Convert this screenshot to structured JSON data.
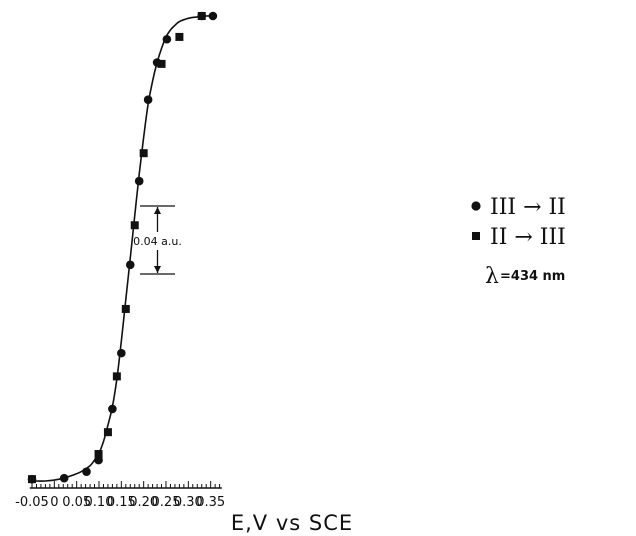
{
  "chart_data": {
    "type": "scatter",
    "title": "",
    "xlabel": "E,V vs SCE",
    "ylabel": "",
    "xlim": [
      -0.055,
      0.375
    ],
    "ylim": [
      0,
      1
    ],
    "x_ticks": [
      -0.05,
      0,
      0.05,
      0.1,
      0.15,
      0.2,
      0.25,
      0.3,
      0.35
    ],
    "x_tick_labels": [
      "-0.05",
      "0",
      "0.05",
      "0.10",
      "0.15",
      "0.20",
      "0.25",
      "0.30",
      "0.35"
    ],
    "scale_bar": {
      "label": "0.04 a.u.",
      "value": 0.04
    },
    "legend": {
      "placement": "right",
      "wavelength_label": "=434 nm",
      "wavelength_symbol": "λ",
      "entries": [
        {
          "marker": "circle",
          "label": "III → II"
        },
        {
          "marker": "square",
          "label": "II → III"
        }
      ]
    },
    "series": [
      {
        "name": "III → II",
        "marker": "circle",
        "x": [
          -0.05,
          0.022,
          0.072,
          0.099,
          0.13,
          0.15,
          0.17,
          0.19,
          0.21,
          0.23,
          0.252,
          0.33,
          0.355
        ],
        "y": [
          0.004,
          0.006,
          0.02,
          0.045,
          0.155,
          0.275,
          0.465,
          0.645,
          0.82,
          0.9,
          0.95,
          1.0,
          1.0
        ]
      },
      {
        "name": "II → III",
        "marker": "square",
        "x": [
          -0.05,
          0.099,
          0.12,
          0.14,
          0.16,
          0.18,
          0.2,
          0.24,
          0.28,
          0.33
        ],
        "y": [
          0.004,
          0.058,
          0.105,
          0.225,
          0.37,
          0.55,
          0.705,
          0.897,
          0.955,
          1.0
        ]
      }
    ],
    "fit_curve": {
      "x": [
        -0.055,
        -0.04,
        -0.02,
        0.0,
        0.02,
        0.04,
        0.06,
        0.08,
        0.09,
        0.1,
        0.11,
        0.12,
        0.13,
        0.14,
        0.15,
        0.16,
        0.17,
        0.18,
        0.19,
        0.2,
        0.21,
        0.22,
        0.23,
        0.24,
        0.25,
        0.26,
        0.27,
        0.28,
        0.3,
        0.32,
        0.34,
        0.355
      ],
      "y": [
        0.0,
        0.0,
        0.0,
        0.002,
        0.006,
        0.012,
        0.02,
        0.033,
        0.045,
        0.06,
        0.085,
        0.12,
        0.16,
        0.22,
        0.3,
        0.39,
        0.48,
        0.57,
        0.66,
        0.74,
        0.81,
        0.86,
        0.9,
        0.93,
        0.955,
        0.97,
        0.98,
        0.988,
        0.995,
        0.998,
        1.0,
        1.0
      ]
    }
  }
}
